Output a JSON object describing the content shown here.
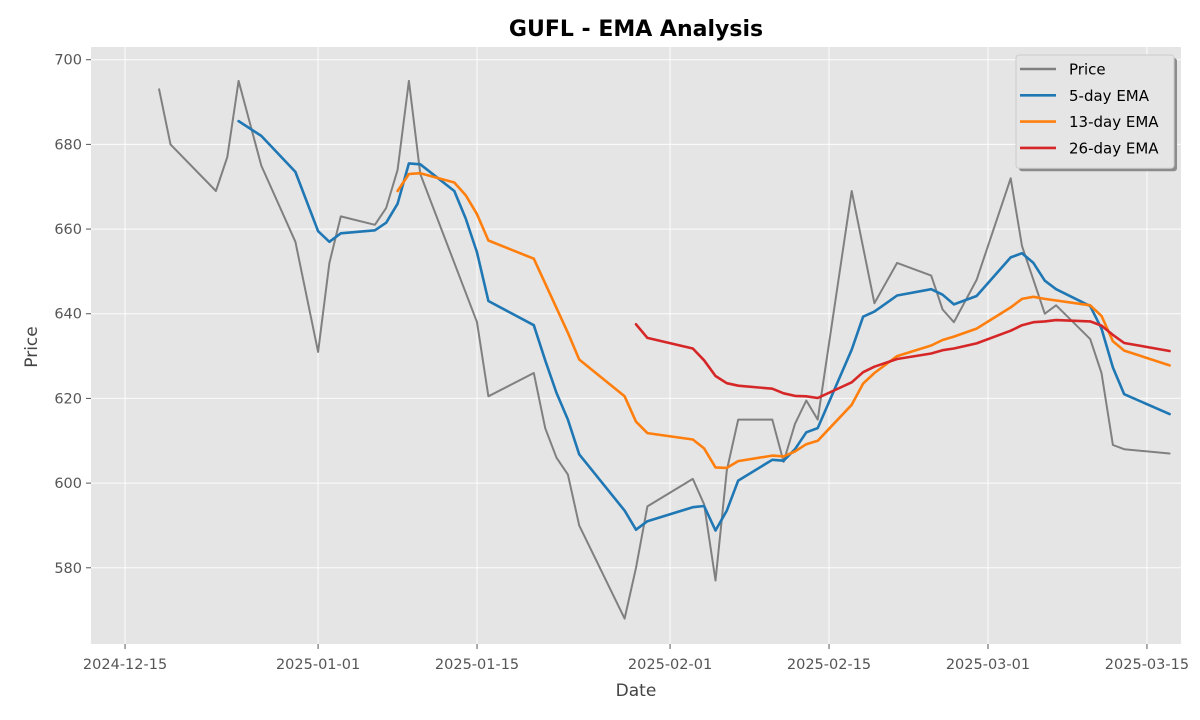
{
  "chart_data": {
    "type": "line",
    "title": "GUFL - EMA Analysis",
    "xlabel": "Date",
    "ylabel": "Price",
    "grid": true,
    "legend_position": "top-right",
    "xlim": [
      "2024-12-12",
      "2025-03-18"
    ],
    "ylim": [
      562,
      703
    ],
    "x_ticks": [
      "2024-12-15",
      "2025-01-01",
      "2025-01-15",
      "2025-02-01",
      "2025-02-15",
      "2025-03-01",
      "2025-03-15"
    ],
    "y_ticks": [
      580,
      600,
      620,
      640,
      660,
      680,
      700
    ],
    "colors": {
      "plot_bg": "#e5e5e5",
      "price": "#808080",
      "ema5": "#1f77b4",
      "ema13": "#ff7f0e",
      "ema26": "#d62728"
    },
    "series": [
      {
        "name": "Price",
        "color": "#808080",
        "points": [
          [
            "2024-12-18",
            693
          ],
          [
            "2024-12-19",
            680
          ],
          [
            "2024-12-23",
            669
          ],
          [
            "2024-12-24",
            677
          ],
          [
            "2024-12-25",
            695
          ],
          [
            "2024-12-27",
            675
          ],
          [
            "2024-12-30",
            657
          ],
          [
            "2025-01-01",
            631
          ],
          [
            "2025-01-02",
            652
          ],
          [
            "2025-01-03",
            663
          ],
          [
            "2025-01-06",
            661
          ],
          [
            "2025-01-07",
            665
          ],
          [
            "2025-01-08",
            674
          ],
          [
            "2025-01-09",
            695
          ],
          [
            "2025-01-10",
            673
          ],
          [
            "2025-01-15",
            638
          ],
          [
            "2025-01-16",
            620.5
          ],
          [
            "2025-01-20",
            626
          ],
          [
            "2025-01-21",
            613
          ],
          [
            "2025-01-22",
            606
          ],
          [
            "2025-01-23",
            602
          ],
          [
            "2025-01-24",
            590
          ],
          [
            "2025-01-28",
            568
          ],
          [
            "2025-01-29",
            580
          ],
          [
            "2025-01-30",
            594.5
          ],
          [
            "2025-02-03",
            601
          ],
          [
            "2025-02-04",
            595
          ],
          [
            "2025-02-05",
            577
          ],
          [
            "2025-02-06",
            603
          ],
          [
            "2025-02-07",
            615
          ],
          [
            "2025-02-10",
            615
          ],
          [
            "2025-02-11",
            605
          ],
          [
            "2025-02-12",
            614
          ],
          [
            "2025-02-13",
            619.5
          ],
          [
            "2025-02-14",
            615
          ],
          [
            "2025-02-17",
            669
          ],
          [
            "2025-02-19",
            642.5
          ],
          [
            "2025-02-21",
            652
          ],
          [
            "2025-02-24",
            649
          ],
          [
            "2025-02-25",
            641
          ],
          [
            "2025-02-26",
            638
          ],
          [
            "2025-02-28",
            648
          ],
          [
            "2025-03-03",
            672
          ],
          [
            "2025-03-04",
            656
          ],
          [
            "2025-03-06",
            640
          ],
          [
            "2025-03-07",
            642
          ],
          [
            "2025-03-10",
            634
          ],
          [
            "2025-03-11",
            626
          ],
          [
            "2025-03-12",
            609
          ],
          [
            "2025-03-13",
            608
          ],
          [
            "2025-03-17",
            607
          ]
        ]
      },
      {
        "name": "5-day EMA",
        "color": "#1f77b4",
        "points": [
          [
            "2024-12-25",
            685.5
          ],
          [
            "2024-12-27",
            682
          ],
          [
            "2024-12-30",
            673.5
          ],
          [
            "2025-01-01",
            659.5
          ],
          [
            "2025-01-02",
            657
          ],
          [
            "2025-01-03",
            659
          ],
          [
            "2025-01-06",
            659.7
          ],
          [
            "2025-01-07",
            661.5
          ],
          [
            "2025-01-08",
            666
          ],
          [
            "2025-01-09",
            675.5
          ],
          [
            "2025-01-10",
            675.3
          ],
          [
            "2025-01-13",
            669
          ],
          [
            "2025-01-14",
            662.5
          ],
          [
            "2025-01-15",
            654.5
          ],
          [
            "2025-01-16",
            643
          ],
          [
            "2025-01-20",
            637.3
          ],
          [
            "2025-01-21",
            629
          ],
          [
            "2025-01-22",
            621.3
          ],
          [
            "2025-01-23",
            615
          ],
          [
            "2025-01-24",
            606.8
          ],
          [
            "2025-01-28",
            593.5
          ],
          [
            "2025-01-29",
            589
          ],
          [
            "2025-01-30",
            591
          ],
          [
            "2025-02-03",
            594.3
          ],
          [
            "2025-02-04",
            594.6
          ],
          [
            "2025-02-05",
            588.8
          ],
          [
            "2025-02-06",
            593.5
          ],
          [
            "2025-02-07",
            600.6
          ],
          [
            "2025-02-10",
            605.5
          ],
          [
            "2025-02-11",
            605.3
          ],
          [
            "2025-02-12",
            608
          ],
          [
            "2025-02-13",
            612
          ],
          [
            "2025-02-14",
            613
          ],
          [
            "2025-02-17",
            631.5
          ],
          [
            "2025-02-18",
            639.3
          ],
          [
            "2025-02-19",
            640.5
          ],
          [
            "2025-02-21",
            644.3
          ],
          [
            "2025-02-24",
            645.8
          ],
          [
            "2025-02-25",
            644.5
          ],
          [
            "2025-02-26",
            642.2
          ],
          [
            "2025-02-28",
            644.2
          ],
          [
            "2025-03-03",
            653.3
          ],
          [
            "2025-03-04",
            654.3
          ],
          [
            "2025-03-05",
            652
          ],
          [
            "2025-03-06",
            647.8
          ],
          [
            "2025-03-07",
            645.8
          ],
          [
            "2025-03-10",
            641.8
          ],
          [
            "2025-03-11",
            636.5
          ],
          [
            "2025-03-12",
            627.3
          ],
          [
            "2025-03-13",
            621
          ],
          [
            "2025-03-17",
            616.3
          ]
        ]
      },
      {
        "name": "13-day EMA",
        "color": "#ff7f0e",
        "points": [
          [
            "2025-01-08",
            669
          ],
          [
            "2025-01-09",
            673
          ],
          [
            "2025-01-10",
            673.2
          ],
          [
            "2025-01-13",
            671
          ],
          [
            "2025-01-14",
            668
          ],
          [
            "2025-01-15",
            663.5
          ],
          [
            "2025-01-16",
            657.3
          ],
          [
            "2025-01-20",
            653
          ],
          [
            "2025-01-23",
            635.5
          ],
          [
            "2025-01-24",
            629.2
          ],
          [
            "2025-01-28",
            620.5
          ],
          [
            "2025-01-29",
            614.5
          ],
          [
            "2025-01-30",
            611.8
          ],
          [
            "2025-02-03",
            610.3
          ],
          [
            "2025-02-04",
            608.2
          ],
          [
            "2025-02-05",
            603.7
          ],
          [
            "2025-02-06",
            603.6
          ],
          [
            "2025-02-07",
            605.2
          ],
          [
            "2025-02-10",
            606.5
          ],
          [
            "2025-02-11",
            606.3
          ],
          [
            "2025-02-12",
            607.5
          ],
          [
            "2025-02-13",
            609.2
          ],
          [
            "2025-02-14",
            610
          ],
          [
            "2025-02-17",
            618.5
          ],
          [
            "2025-02-18",
            623.5
          ],
          [
            "2025-02-19",
            626
          ],
          [
            "2025-02-21",
            630
          ],
          [
            "2025-02-24",
            632.5
          ],
          [
            "2025-02-25",
            633.8
          ],
          [
            "2025-02-26",
            634.6
          ],
          [
            "2025-02-28",
            636.5
          ],
          [
            "2025-03-03",
            641.5
          ],
          [
            "2025-03-04",
            643.5
          ],
          [
            "2025-03-05",
            644
          ],
          [
            "2025-03-06",
            643.5
          ],
          [
            "2025-03-10",
            642
          ],
          [
            "2025-03-11",
            639.5
          ],
          [
            "2025-03-12",
            633.5
          ],
          [
            "2025-03-13",
            631.3
          ],
          [
            "2025-03-17",
            627.8
          ]
        ]
      },
      {
        "name": "26-day EMA",
        "color": "#d62728",
        "points": [
          [
            "2025-01-29",
            637.5
          ],
          [
            "2025-01-30",
            634.3
          ],
          [
            "2025-02-03",
            631.8
          ],
          [
            "2025-02-04",
            629
          ],
          [
            "2025-02-05",
            625.3
          ],
          [
            "2025-02-06",
            623.6
          ],
          [
            "2025-02-07",
            623
          ],
          [
            "2025-02-10",
            622.3
          ],
          [
            "2025-02-11",
            621.2
          ],
          [
            "2025-02-12",
            620.6
          ],
          [
            "2025-02-13",
            620.5
          ],
          [
            "2025-02-14",
            620.1
          ],
          [
            "2025-02-17",
            623.8
          ],
          [
            "2025-02-18",
            626.2
          ],
          [
            "2025-02-19",
            627.5
          ],
          [
            "2025-02-21",
            629.3
          ],
          [
            "2025-02-24",
            630.6
          ],
          [
            "2025-02-25",
            631.4
          ],
          [
            "2025-02-26",
            631.8
          ],
          [
            "2025-02-28",
            633
          ],
          [
            "2025-03-03",
            636
          ],
          [
            "2025-03-04",
            637.3
          ],
          [
            "2025-03-05",
            638
          ],
          [
            "2025-03-06",
            638.2
          ],
          [
            "2025-03-07",
            638.5
          ],
          [
            "2025-03-10",
            638.2
          ],
          [
            "2025-03-11",
            637.2
          ],
          [
            "2025-03-12",
            635
          ],
          [
            "2025-03-13",
            633.1
          ],
          [
            "2025-03-17",
            631.2
          ]
        ]
      }
    ]
  }
}
